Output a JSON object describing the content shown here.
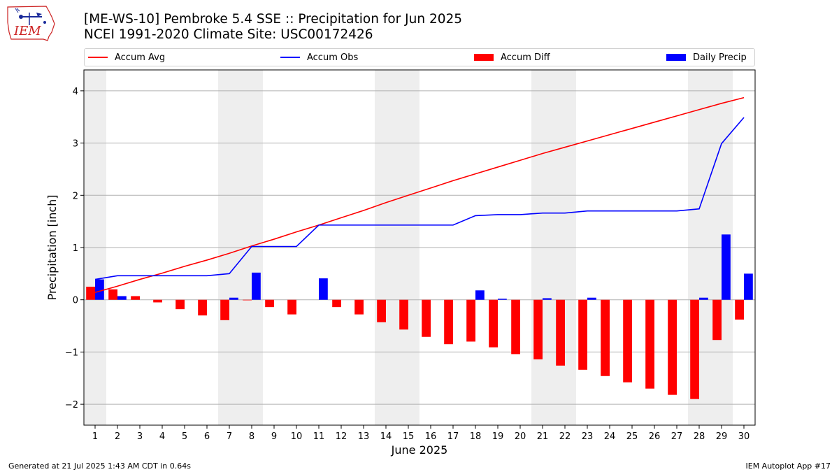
{
  "header": {
    "title_line1": "[ME-WS-10] Pembroke 5.4 SSE :: Precipitation for Jun 2025",
    "title_line2": "NCEI 1991-2020 Climate Site: USC00172426"
  },
  "logo": {
    "text": "IEM",
    "icon": "iowa-map-weather-station-icon"
  },
  "footer": {
    "left": "Generated at 21 Jul 2025 1:43 AM CDT in 0.64s",
    "right": "IEM Autoplot App #17"
  },
  "colors": {
    "avg": "#ff0000",
    "obs": "#0000ff",
    "diff": "#ff0000",
    "daily": "#0000ff",
    "weekend_shade": "#eeeeee",
    "grid": "#b0b0b0"
  },
  "chart_data": {
    "type": "bar",
    "xlabel": "June 2025",
    "ylabel": "Precipitation [inch]",
    "ylim": [
      -2.4,
      4.4
    ],
    "yticks": [
      -2,
      -1,
      0,
      1,
      2,
      3,
      4
    ],
    "ytick_labels": [
      "−2",
      "−1",
      "0",
      "1",
      "2",
      "3",
      "4"
    ],
    "xlim": [
      0.5,
      30.5
    ],
    "grid": "horizontal",
    "legend_placement": "top",
    "weekend_days": [
      1,
      7,
      8,
      14,
      15,
      21,
      22,
      28,
      29
    ],
    "x": [
      1,
      2,
      3,
      4,
      5,
      6,
      7,
      8,
      9,
      10,
      11,
      12,
      13,
      14,
      15,
      16,
      17,
      18,
      19,
      20,
      21,
      22,
      23,
      24,
      25,
      26,
      27,
      28,
      29,
      30
    ],
    "series": [
      {
        "name": "Accum Avg",
        "kind": "line",
        "color": "#ff0000",
        "values": [
          0.14,
          0.26,
          0.39,
          0.51,
          0.64,
          0.76,
          0.89,
          1.03,
          1.16,
          1.3,
          1.43,
          1.57,
          1.71,
          1.86,
          2.0,
          2.14,
          2.28,
          2.41,
          2.54,
          2.67,
          2.8,
          2.92,
          3.04,
          3.16,
          3.28,
          3.4,
          3.52,
          3.64,
          3.76,
          3.87
        ]
      },
      {
        "name": "Accum Obs",
        "kind": "line",
        "color": "#0000ff",
        "values": [
          0.39,
          0.46,
          0.46,
          0.46,
          0.46,
          0.46,
          0.5,
          1.02,
          1.02,
          1.02,
          1.43,
          1.43,
          1.43,
          1.43,
          1.43,
          1.43,
          1.43,
          1.61,
          1.63,
          1.63,
          1.66,
          1.66,
          1.7,
          1.7,
          1.7,
          1.7,
          1.7,
          1.74,
          2.99,
          3.49
        ]
      },
      {
        "name": "Accum Diff",
        "kind": "bar",
        "color": "#ff0000",
        "values": [
          0.25,
          0.2,
          0.07,
          -0.05,
          -0.18,
          -0.3,
          -0.39,
          -0.01,
          -0.14,
          -0.28,
          0.0,
          -0.14,
          -0.28,
          -0.43,
          -0.57,
          -0.71,
          -0.85,
          -0.8,
          -0.91,
          -1.04,
          -1.14,
          -1.26,
          -1.34,
          -1.46,
          -1.58,
          -1.7,
          -1.82,
          -1.9,
          -0.77,
          -0.38
        ]
      },
      {
        "name": "Daily Precip",
        "kind": "bar",
        "color": "#0000ff",
        "values": [
          0.39,
          0.07,
          0,
          0,
          0,
          0,
          0.04,
          0.52,
          0,
          0,
          0.41,
          0,
          0,
          0,
          0,
          0,
          0,
          0.18,
          0.02,
          0,
          0.03,
          0,
          0.04,
          0,
          0,
          0,
          0,
          0.04,
          1.25,
          0.5
        ]
      }
    ]
  }
}
